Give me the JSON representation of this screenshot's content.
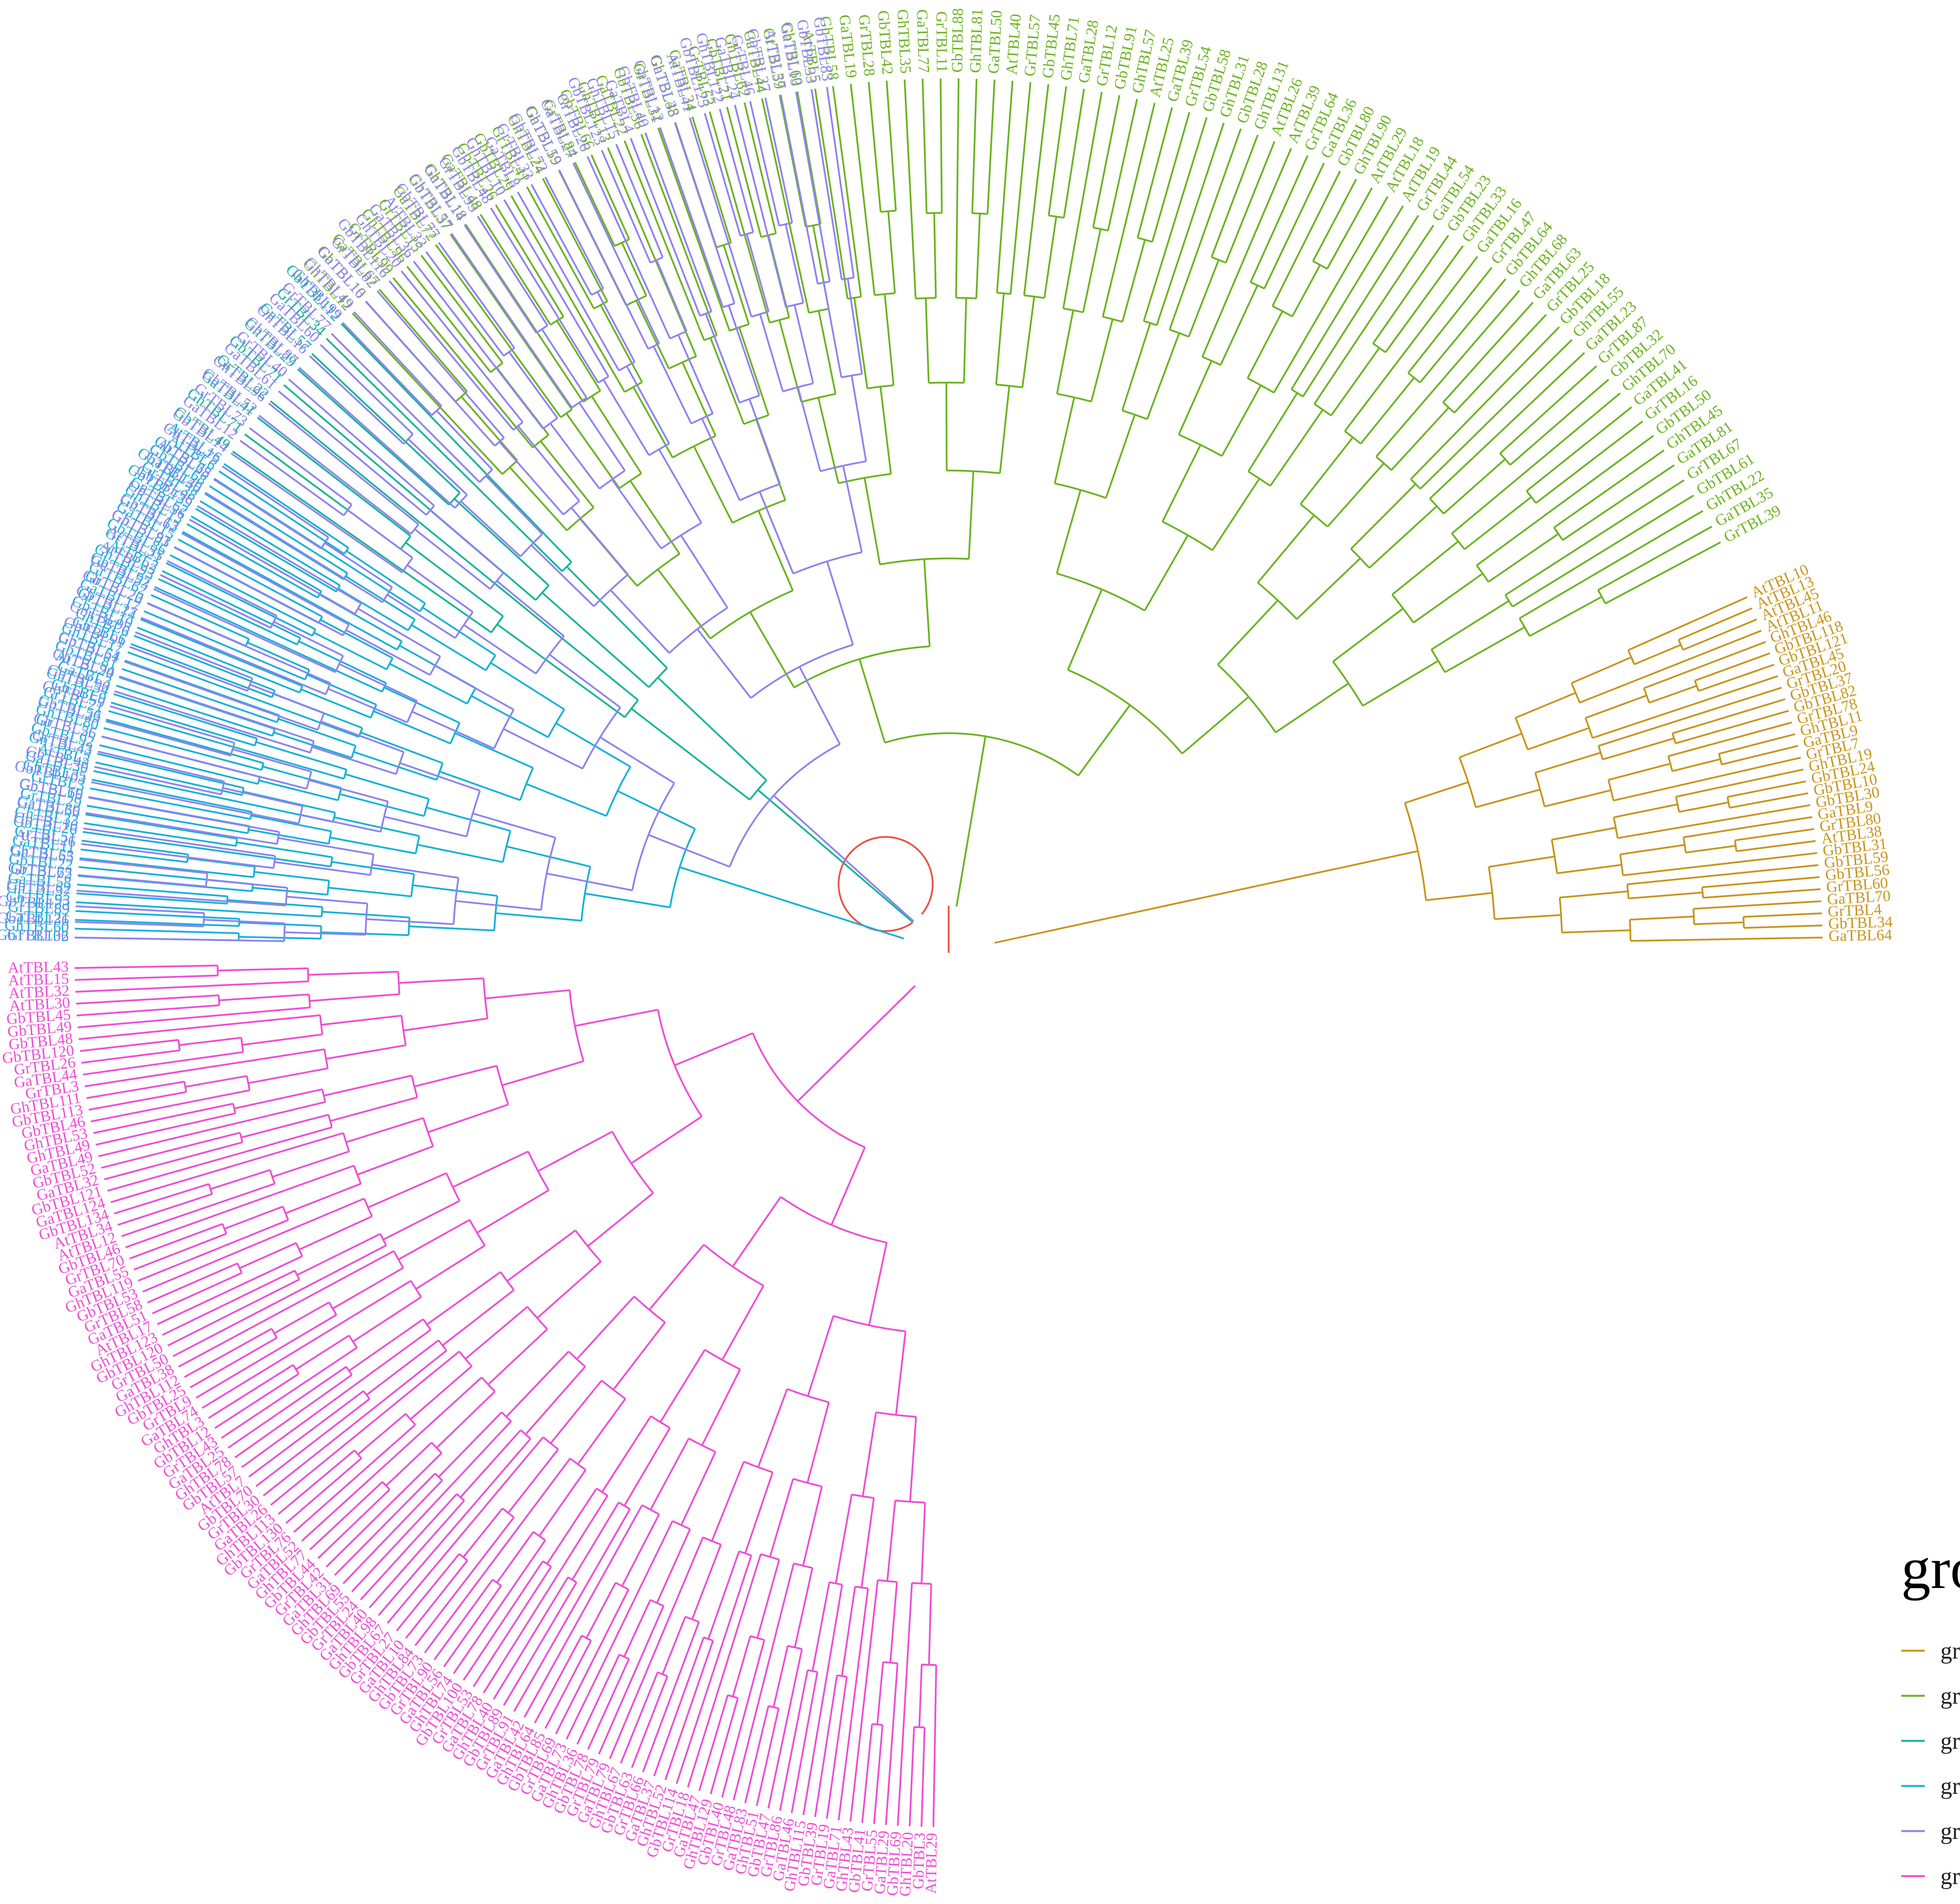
{
  "legend": {
    "title": "group",
    "groups": [
      {
        "id": "I",
        "label": "group I",
        "color": "#C8961E"
      },
      {
        "id": "II",
        "label": "group II",
        "color": "#6CB421"
      },
      {
        "id": "III",
        "label": "group III",
        "color": "#17B598"
      },
      {
        "id": "IV",
        "label": "group IV",
        "color": "#18B2D6"
      },
      {
        "id": "V",
        "label": "group V",
        "color": "#8F83F0"
      },
      {
        "id": "VI",
        "label": "group VI",
        "color": "#EE4FD6"
      }
    ]
  },
  "root_color": "#E8544A",
  "clades": [
    {
      "group": "I",
      "tips": [
        "AtTBL10",
        "AtTBL13",
        "AtTBL45",
        "AtTBL11",
        "GhTBL46",
        "GbTBL118",
        "GbTBL121",
        "GaTBL45",
        "GrTBL20",
        "GbTBL37",
        "GbTBL82",
        "GrTBL78",
        "GhTBL11",
        "GaTBL9",
        "GrTBL7",
        "GhTBL19",
        "GbTBL24",
        "GbTBL10",
        "GbTBL30",
        "GaTBL9",
        "GrTBL80",
        "AtTBL38",
        "GbTBL31",
        "GbTBL59",
        "GbTBL56",
        "GrTBL60",
        "GaTBL70",
        "GrTBL4",
        "GbTBL34",
        "GaTBL64"
      ]
    },
    {
      "group": "II",
      "tips": [
        "GhTBL12",
        "GbTBL10",
        "GaTBL67",
        "GrTBL99",
        "GhTBL96",
        "GrTBL15",
        "GaTBL72",
        "GbTBL37",
        "GhTBL18",
        "GaTBL48",
        "GbTBL26",
        "GbTBL29",
        "GrTBL41",
        "GhTBL24",
        "GaTBL59",
        "GrTBL84",
        "GbTBL66",
        "GhTBL13",
        "GaTBL22",
        "GbTBL56",
        "GrTBL31",
        "GhTBL48",
        "GaTBL34",
        "GrTBL63",
        "GbTBL21",
        "GhTBL62",
        "GaTBL44",
        "GrTBL59",
        "GbTBL60",
        "AtTBL5",
        "GhTBL58",
        "GaTBL19",
        "GrTBL28",
        "GbTBL42",
        "GhTBL35",
        "GaTBL77",
        "GrTBL11",
        "GbTBL88",
        "GhTBL81",
        "GaTBL50",
        "AtTBL40",
        "GrTBL57",
        "GbTBL45",
        "GhTBL71",
        "GaTBL28",
        "GrTBL12",
        "GbTBL91",
        "GhTBL57",
        "AtTBL25",
        "GaTBL39",
        "GrTBL54",
        "GbTBL58",
        "GhTBL31",
        "GbTBL28",
        "GhTBL131",
        "AtTBL26",
        "AtTBL39",
        "GrTBL64",
        "GaTBL36",
        "GbTBL80",
        "GhTBL90",
        "AtTBL29",
        "AtTBL18",
        "AtTBL19",
        "GrTBL44",
        "GaTBL54",
        "GbTBL23",
        "GhTBL33",
        "GaTBL16",
        "GrTBL47",
        "GbTBL64",
        "GhTBL68",
        "GaTBL63",
        "GrTBL25",
        "GbTBL18",
        "GhTBL55",
        "GaTBL23",
        "GrTBL87",
        "GbTBL32",
        "GhTBL70",
        "GaTBL41",
        "GrTBL16",
        "GbTBL50",
        "GhTBL45",
        "GaTBL81",
        "GrTBL67",
        "GbTBL61",
        "GhTBL22",
        "GaTBL35",
        "GrTBL39"
      ]
    },
    {
      "group": "III",
      "tips": [
        "GbTBL49",
        "GhTBL71",
        "GaTBL41",
        "GrTBL22",
        "GbTBL71",
        "GhTBL29",
        "GaTBL57",
        "GrTBL34",
        "GbTBL112"
      ]
    },
    {
      "group": "IV",
      "tips": [
        "GbTBL102",
        "GhTBL60",
        "GaTBL21",
        "GrTBL89",
        "GbTBL93",
        "GhTBL37",
        "GaTBL58",
        "GrTBL72",
        "GbTBL22",
        "GhTBL53",
        "GaTBL11",
        "GrTBL51",
        "GbTBL26",
        "GhTBL33",
        "GaTBL66",
        "GrTBL29",
        "GbTBL69",
        "GrTBL3",
        "GbTBL35",
        "GaTBL30",
        "AtTBL2",
        "GhTBL43",
        "GbTBL92",
        "GrTBL56",
        "GhTBL80",
        "GbTBL56",
        "GrTBL21",
        "GbTBL9",
        "GhTBL54",
        "GaTBL3",
        "AtTBL20",
        "GbTBL81",
        "GbTBL54",
        "GhTBL17",
        "GbTBL6",
        "GhTBL6",
        "GbTBL10",
        "GrTBL14",
        "GaTBL17",
        "GrTBL20",
        "GrTBL62",
        "GbTBL97",
        "GhTBL93",
        "AtTBL2",
        "GrTBL21",
        "GbTBL86",
        "GhTBL83",
        "GaTBL15",
        "GbTBL13",
        "GhTBL13",
        "GaTBL62",
        "GbTBL139",
        "GrTBL38",
        "GhTBL136",
        "GbTBL68",
        "GbTBL65",
        "AtTBL6",
        "AtTBL16"
      ]
    },
    {
      "group": "V",
      "tips": [
        "GrTBL36",
        "GbTBL136",
        "GbTBL133",
        "GbTBL62",
        "GbTBL65",
        "GaTBL65",
        "AtTBL26",
        "GbTBL16",
        "GaTBL30",
        "GbTBL16",
        "GbTBL103",
        "GbTBL42",
        "GrTBL23",
        "GbTBL25",
        "GbTBL23",
        "GbTBL59",
        "GbTBL90",
        "GbTBL94",
        "GbTBL61",
        "GbTBL91",
        "GbTBL95",
        "GbTBL27",
        "GbTBL23",
        "GaTBL53",
        "AtTBL23",
        "AtTBL35",
        "GbTBL91",
        "GhTBL62",
        "GbTBL56",
        "GbTBL96",
        "GaTBL49",
        "AtTBL28",
        "GhTBL75",
        "GbTBL14",
        "GaTBL12",
        "GrTBL73",
        "GbTBL52",
        "GhTBL96",
        "GaTBL61",
        "GrTBL40",
        "GbTBL87",
        "GhTBL16",
        "GaTBL60",
        "GrTBL77",
        "GbTBL99",
        "GhTBL49",
        "GaTBL16",
        "GrTBL82",
        "GbTBL116",
        "GhTBL20",
        "GaTBL36",
        "AtTBL33",
        "GbTBL77",
        "GhTBL57",
        "GaTBL14",
        "GrTBL93",
        "GbTBL48",
        "GhTBL10",
        "GaTBL8",
        "GrTBL33",
        "GbTBL72",
        "GhTBL19",
        "GaTBL27",
        "GrTBL26",
        "GbTBL123",
        "GhTBL15",
        "GaTBL4",
        "GbTBL40",
        "GhTBL12",
        "GaTBL33",
        "AtTBL41",
        "GbTBL125",
        "GhTBL122",
        "GaTBL24",
        "GrTBL46",
        "GbTBL37",
        "AtTBL37",
        "GaTBL13",
        "GbTBL33",
        "GbTBL83"
      ]
    },
    {
      "group": "VI",
      "tips": [
        "AtTBL29",
        "GbTBL3",
        "GhTBL20",
        "GbTBL69",
        "GaTBL29",
        "GrTBL55",
        "GbTBL41",
        "GhTBL43",
        "GaTBL71",
        "GrTBL19",
        "GbTBL39",
        "GhTBL115",
        "GaTBL46",
        "GrTBL86",
        "GbTBL47",
        "GhTBL51",
        "GaTBL83",
        "GrTBL48",
        "GbTBL40",
        "GhTBL129",
        "GaTBL47",
        "GrTBL18",
        "GbTBL114",
        "GhTBL52",
        "GaTBL37",
        "GrTBL66",
        "GbTBL63",
        "GhTBL67",
        "GaTBL79",
        "GrTBL79",
        "GbTBL78",
        "GhTBL36",
        "GaTBL73",
        "GrTBL69",
        "GbTBL85",
        "GhTBL64",
        "GaTBL42",
        "GrTBL91",
        "GbTBL89",
        "GhTBL40",
        "GaTBL78",
        "GrTBL53",
        "GbTBL100",
        "GhTBL74",
        "GaTBL56",
        "GrTBL90",
        "GbTBL73",
        "GhTBL84",
        "GaTBL10",
        "GrTBL27",
        "GbTBL67",
        "GhTBL98",
        "GaTBL40",
        "GrTBL24",
        "GbTBL55",
        "GhTBL69",
        "GaTBL31",
        "GrTBL42",
        "GbTBL44",
        "GhTBL77",
        "GaTBL52",
        "GrTBL76",
        "GbTBL130",
        "GhTBL113",
        "GaTBL26",
        "GrTBL30",
        "GbTBL70",
        "AtTBL7",
        "GbTBL57",
        "GhTBL78",
        "GaTBL25",
        "GrTBL43",
        "GbTBL12",
        "GhTBL3",
        "GaTBL74",
        "GrTBL9",
        "GbTBL25",
        "GhTBL112",
        "GaTBL38",
        "GrTBL50",
        "GbTBL120",
        "GhTBL123",
        "AtTBL17",
        "GaTBL51",
        "GrTBL58",
        "GbTBL53",
        "GhTBL119",
        "GaTBL55",
        "GrTBL70",
        "GbTBL46",
        "AtTBL12",
        "AtTBL34",
        "GbTBL134",
        "GaTBL124",
        "GbTBL121",
        "GaTBL32",
        "GbTBL52",
        "GaTBL49",
        "GhTBL49",
        "GhTBL53",
        "GbTBL46",
        "GbTBL113",
        "GhTBL111",
        "GrTBL3",
        "GaTBL44",
        "GrTBL26",
        "GbTBL120",
        "GbTBL48",
        "GbTBL49",
        "GbTBL45",
        "AtTBL30",
        "AtTBL32",
        "AtTBL15",
        "AtTBL43"
      ]
    }
  ]
}
